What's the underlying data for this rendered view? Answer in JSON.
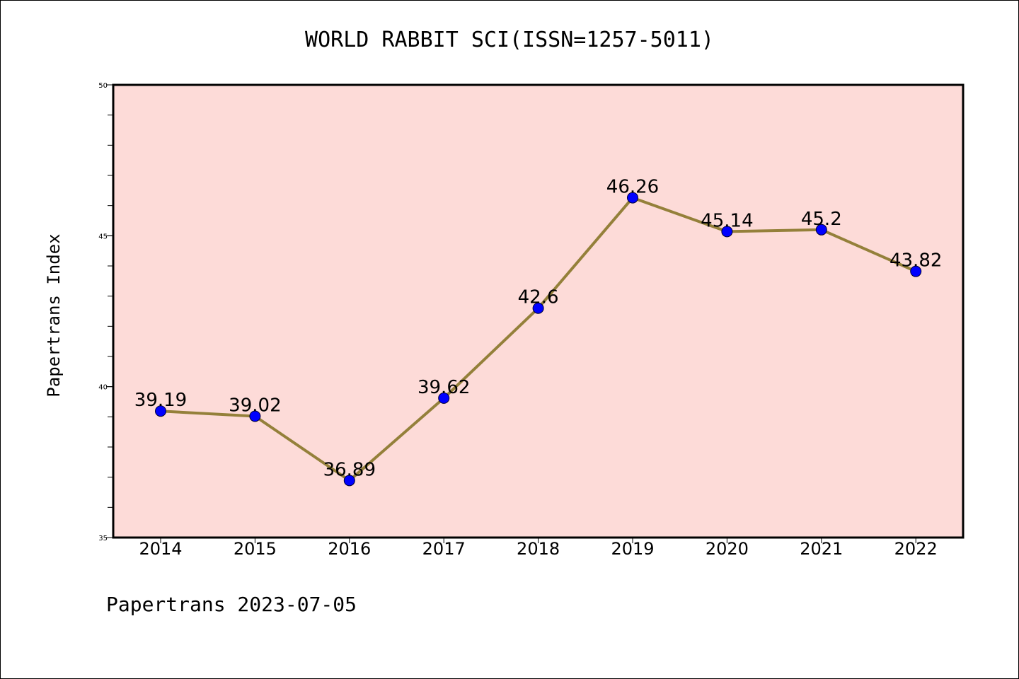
{
  "chart_data": {
    "type": "line",
    "title": "WORLD RABBIT SCI(ISSN=1257-5011)",
    "xlabel": "",
    "ylabel": "Papertrans Index",
    "categories": [
      "2014",
      "2015",
      "2016",
      "2017",
      "2018",
      "2019",
      "2020",
      "2021",
      "2022"
    ],
    "values": [
      39.19,
      39.02,
      36.89,
      39.62,
      42.6,
      46.26,
      45.14,
      45.2,
      43.82
    ],
    "data_labels": [
      "39.19",
      "39.02",
      "36.89",
      "39.62",
      "42.6",
      "46.26",
      "45.14",
      "45.2",
      "43.82"
    ],
    "ylim": [
      35,
      50
    ],
    "yticks": [
      "35",
      "40",
      "45",
      "50"
    ],
    "ytick_values": [
      35,
      40,
      45,
      50
    ],
    "minor_tick_step": 1,
    "grid": false,
    "legend": "none",
    "footer": "Papertrans 2023-07-05",
    "colors": {
      "plot_background": "#fddbd8",
      "line": "#94803a",
      "marker": "#0000ff",
      "axis": "#000000"
    }
  }
}
